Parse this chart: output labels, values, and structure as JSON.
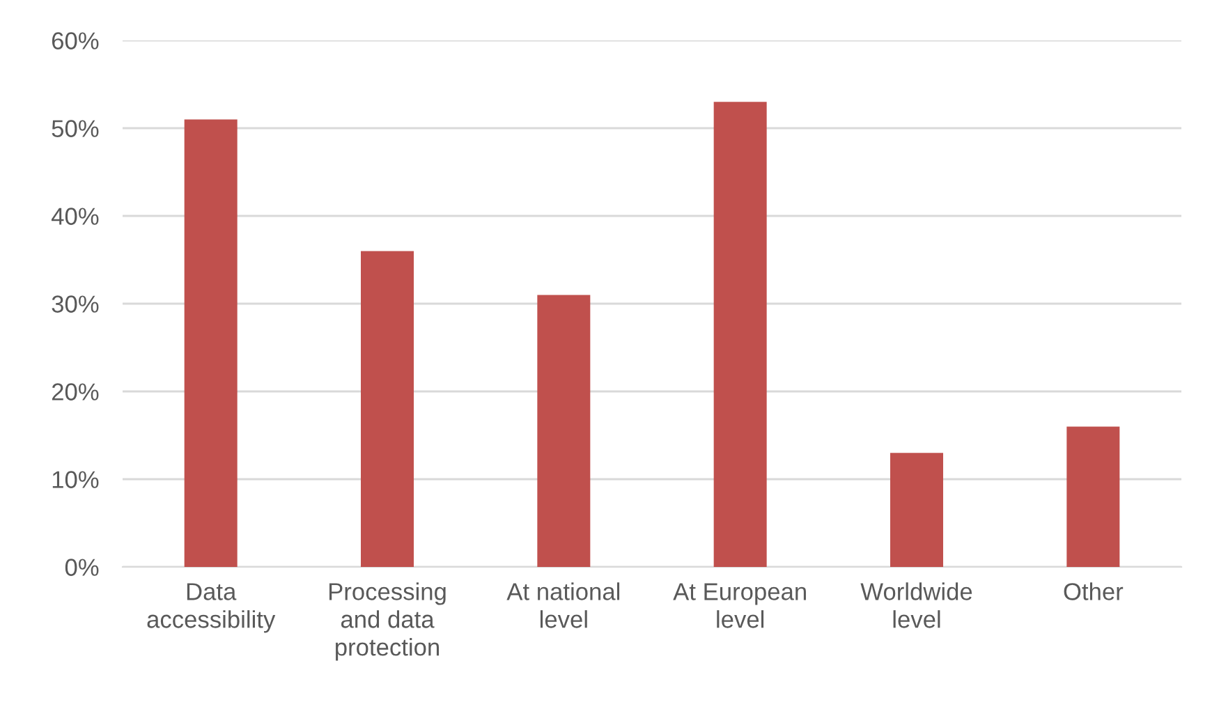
{
  "chart_data": {
    "type": "bar",
    "categories": [
      "Data accessibility",
      "Processing and data protection",
      "At national level",
      "At European level",
      "Worldwide level",
      "Other"
    ],
    "values": [
      51,
      36,
      31,
      53,
      13,
      16
    ],
    "color": "#c0504d",
    "ylim": [
      0,
      60
    ],
    "yticks": [
      {
        "value": 0,
        "label": "0%"
      },
      {
        "value": 10,
        "label": "10%"
      },
      {
        "value": 20,
        "label": "20%"
      },
      {
        "value": 30,
        "label": "30%"
      },
      {
        "value": 40,
        "label": "40%"
      },
      {
        "value": 50,
        "label": "50%"
      },
      {
        "value": 60,
        "label": "60%"
      }
    ],
    "grid": "y"
  }
}
